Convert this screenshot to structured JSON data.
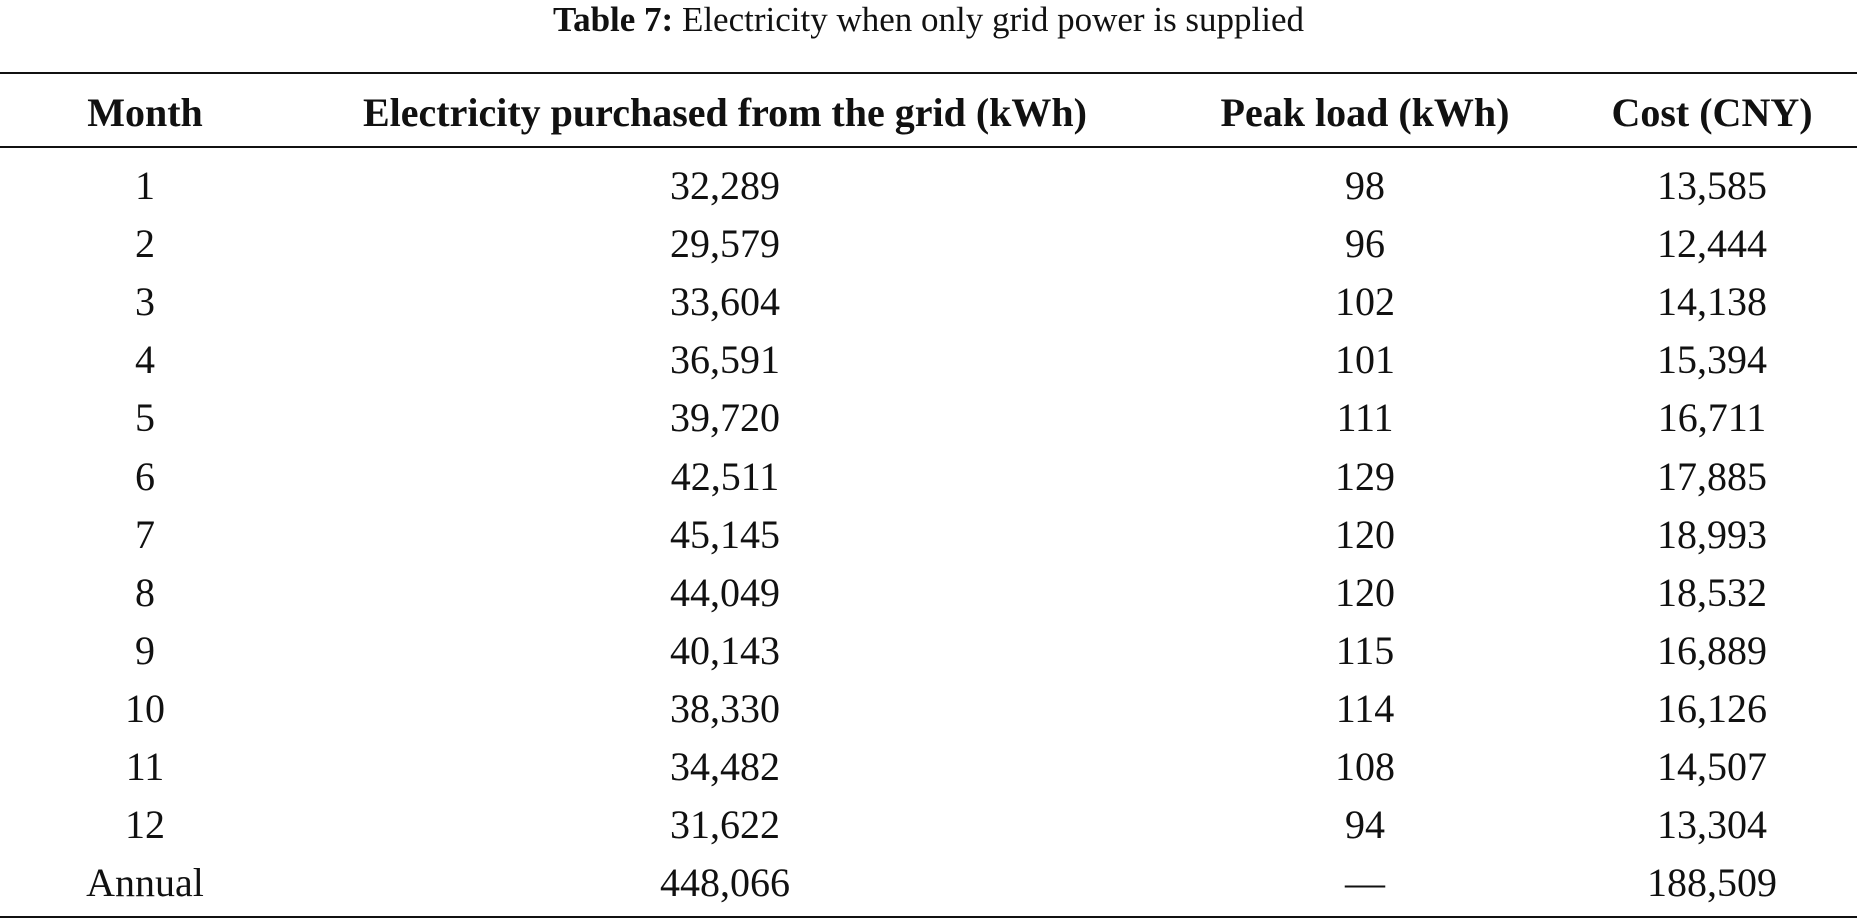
{
  "caption": {
    "label": "Table 7:",
    "text": "Electricity when only grid power is supplied"
  },
  "table": {
    "header": [
      "Month",
      "Electricity purchased from the grid (kWh)",
      "Peak load (kWh)",
      "Cost (CNY)"
    ],
    "rows": [
      [
        "1",
        "32,289",
        "98",
        "13,585"
      ],
      [
        "2",
        "29,579",
        "96",
        "12,444"
      ],
      [
        "3",
        "33,604",
        "102",
        "14,138"
      ],
      [
        "4",
        "36,591",
        "101",
        "15,394"
      ],
      [
        "5",
        "39,720",
        "111",
        "16,711"
      ],
      [
        "6",
        "42,511",
        "129",
        "17,885"
      ],
      [
        "7",
        "45,145",
        "120",
        "18,993"
      ],
      [
        "8",
        "44,049",
        "120",
        "18,532"
      ],
      [
        "9",
        "40,143",
        "115",
        "16,889"
      ],
      [
        "10",
        "38,330",
        "114",
        "16,126"
      ],
      [
        "11",
        "34,482",
        "108",
        "14,507"
      ],
      [
        "12",
        "31,622",
        "94",
        "13,304"
      ],
      [
        "Annual",
        "448,066",
        "—",
        "188,509"
      ]
    ]
  }
}
